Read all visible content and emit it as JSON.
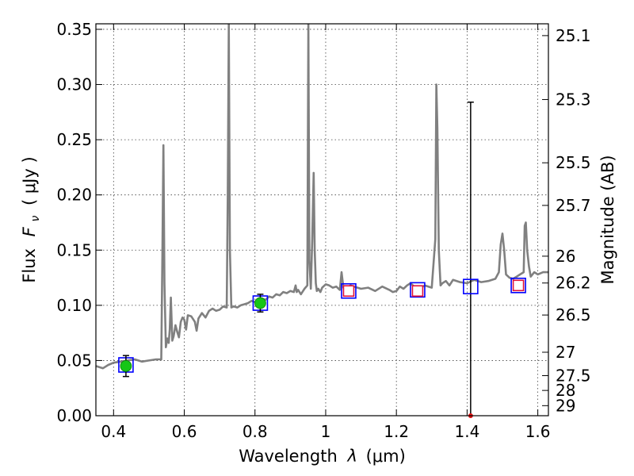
{
  "chart_data": {
    "type": "line",
    "xlabel_prefix": "Wavelength",
    "xlabel_symbol": "λ",
    "xlabel_unit": "(μm)",
    "ylabel_prefix": "Flux",
    "ylabel_symbol": "F",
    "ylabel_sub": "ν",
    "ylabel_unit": "( μJy )",
    "y2label": "Magnitude (AB)",
    "xlim": [
      0.35,
      1.63
    ],
    "ylim": [
      0,
      0.355
    ],
    "grid": true,
    "x_ticks": [
      0.4,
      0.6,
      0.8,
      1.0,
      1.2,
      1.4,
      1.6
    ],
    "x_tick_labels": [
      "0.4",
      "0.6",
      "0.8",
      "1",
      "1.2",
      "1.4",
      "1.6"
    ],
    "y_ticks": [
      0.0,
      0.05,
      0.1,
      0.15,
      0.2,
      0.25,
      0.3,
      0.35
    ],
    "y_tick_labels": [
      "0.00",
      "0.05",
      "0.10",
      "0.15",
      "0.20",
      "0.25",
      "0.30",
      "0.35"
    ],
    "mag_ticks": [
      {
        "label": "25.1",
        "flux": 0.3443
      },
      {
        "label": "25.3",
        "flux": 0.2864
      },
      {
        "label": "25.5",
        "flux": 0.2291
      },
      {
        "label": "25.7",
        "flux": 0.1905
      },
      {
        "label": "26",
        "flux": 0.1445
      },
      {
        "label": "26.2",
        "flux": 0.1202
      },
      {
        "label": "26.5",
        "flux": 0.0912
      },
      {
        "label": "27",
        "flux": 0.0575
      },
      {
        "label": "27.5",
        "flux": 0.0363
      },
      {
        "label": "28",
        "flux": 0.0229
      },
      {
        "label": "29",
        "flux": 0.0091
      }
    ],
    "colors": {
      "spectrum": "#808080",
      "detection_fill": "#16c616",
      "model_box": "#0000ff",
      "model_box_inner": "#e0103a",
      "errorbar": "#000000",
      "upper_limit_marker": "#e01010"
    },
    "spectrum": {
      "name": "",
      "x": [
        0.35,
        0.37,
        0.385,
        0.4,
        0.42,
        0.44,
        0.46,
        0.48,
        0.5,
        0.52,
        0.535,
        0.538,
        0.541,
        0.544,
        0.548,
        0.552,
        0.556,
        0.559,
        0.562,
        0.566,
        0.57,
        0.575,
        0.58,
        0.585,
        0.59,
        0.595,
        0.6,
        0.605,
        0.61,
        0.62,
        0.63,
        0.635,
        0.64,
        0.65,
        0.66,
        0.67,
        0.68,
        0.69,
        0.7,
        0.71,
        0.72,
        0.723,
        0.726,
        0.729,
        0.733,
        0.74,
        0.75,
        0.76,
        0.77,
        0.78,
        0.79,
        0.8,
        0.81,
        0.82,
        0.83,
        0.84,
        0.85,
        0.86,
        0.87,
        0.88,
        0.89,
        0.9,
        0.91,
        0.915,
        0.918,
        0.922,
        0.93,
        0.94,
        0.948,
        0.951,
        0.954,
        0.958,
        0.962,
        0.966,
        0.969,
        0.972,
        0.975,
        0.979,
        0.985,
        0.99,
        1.0,
        1.01,
        1.02,
        1.03,
        1.04,
        1.045,
        1.05,
        1.055,
        1.06,
        1.07,
        1.08,
        1.1,
        1.12,
        1.14,
        1.16,
        1.18,
        1.19,
        1.2,
        1.21,
        1.22,
        1.23,
        1.24,
        1.26,
        1.28,
        1.3,
        1.31,
        1.313,
        1.316,
        1.32,
        1.325,
        1.33,
        1.34,
        1.35,
        1.36,
        1.38,
        1.4,
        1.42,
        1.44,
        1.46,
        1.48,
        1.49,
        1.495,
        1.5,
        1.505,
        1.51,
        1.52,
        1.53,
        1.54,
        1.55,
        1.56,
        1.563,
        1.566,
        1.57,
        1.575,
        1.58,
        1.59,
        1.6,
        1.615,
        1.63
      ],
      "y": [
        0.045,
        0.043,
        0.046,
        0.048,
        0.049,
        0.05,
        0.051,
        0.049,
        0.05,
        0.051,
        0.051,
        0.145,
        0.245,
        0.12,
        0.062,
        0.07,
        0.066,
        0.078,
        0.107,
        0.068,
        0.072,
        0.082,
        0.076,
        0.071,
        0.085,
        0.089,
        0.087,
        0.078,
        0.091,
        0.09,
        0.085,
        0.077,
        0.088,
        0.093,
        0.089,
        0.095,
        0.097,
        0.095,
        0.096,
        0.099,
        0.098,
        0.2,
        0.355,
        0.15,
        0.098,
        0.099,
        0.098,
        0.1,
        0.101,
        0.102,
        0.104,
        0.103,
        0.104,
        0.106,
        0.105,
        0.108,
        0.107,
        0.11,
        0.109,
        0.112,
        0.111,
        0.113,
        0.112,
        0.118,
        0.112,
        0.114,
        0.11,
        0.115,
        0.118,
        0.355,
        0.14,
        0.115,
        0.16,
        0.22,
        0.15,
        0.12,
        0.113,
        0.115,
        0.112,
        0.116,
        0.119,
        0.118,
        0.116,
        0.117,
        0.114,
        0.13,
        0.116,
        0.114,
        0.116,
        0.118,
        0.117,
        0.115,
        0.116,
        0.113,
        0.117,
        0.114,
        0.112,
        0.113,
        0.117,
        0.115,
        0.118,
        0.12,
        0.114,
        0.118,
        0.116,
        0.16,
        0.3,
        0.26,
        0.15,
        0.118,
        0.12,
        0.122,
        0.118,
        0.123,
        0.121,
        0.12,
        0.123,
        0.121,
        0.122,
        0.124,
        0.13,
        0.155,
        0.165,
        0.15,
        0.128,
        0.125,
        0.124,
        0.126,
        0.128,
        0.13,
        0.172,
        0.175,
        0.15,
        0.135,
        0.126,
        0.13,
        0.128,
        0.13,
        0.13
      ]
    },
    "detections": [
      {
        "x": 0.435,
        "y": 0.045,
        "yerr_low": 0.0095,
        "yerr_high": 0.0095
      },
      {
        "x": 0.815,
        "y": 0.102,
        "yerr_low": 0.008,
        "yerr_high": 0.008
      }
    ],
    "model_points": [
      {
        "x": 0.435,
        "y": 0.046
      },
      {
        "x": 0.815,
        "y": 0.102
      },
      {
        "x": 1.065,
        "y": 0.113
      },
      {
        "x": 1.26,
        "y": 0.114
      },
      {
        "x": 1.41,
        "y": 0.117
      },
      {
        "x": 1.545,
        "y": 0.118
      }
    ],
    "nondetections": [
      {
        "x": 1.065,
        "y": 0.113
      },
      {
        "x": 1.26,
        "y": 0.113
      },
      {
        "x": 1.545,
        "y": 0.118
      }
    ],
    "upper_limit": {
      "x": 1.41,
      "y": 0.0,
      "yerr_high": 0.284
    }
  }
}
